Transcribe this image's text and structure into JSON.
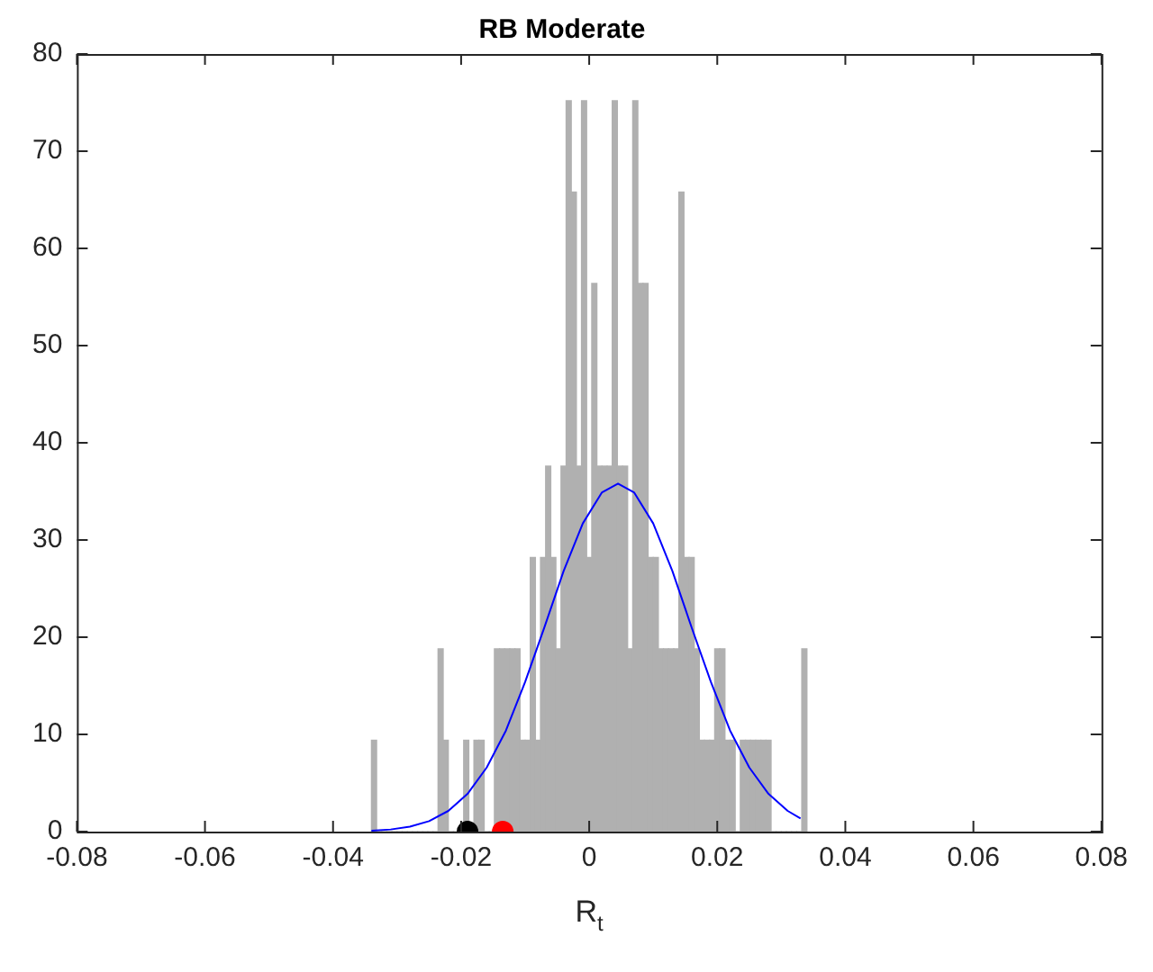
{
  "chart_data": {
    "type": "histogram",
    "title": "RB Moderate",
    "xlabel": "R$_{t}$",
    "color": "#b0b0b0",
    "bins": [
      -0.034,
      -0.0332,
      -0.0324,
      -0.0316,
      -0.0308,
      -0.03,
      -0.0292,
      -0.0284,
      -0.0276,
      -0.0268,
      -0.026,
      -0.0252,
      -0.0244,
      -0.0236,
      -0.0228,
      -0.022,
      -0.0212,
      -0.0204,
      -0.0196,
      -0.0188,
      -0.018,
      -0.0172,
      -0.0164,
      -0.0156,
      -0.0148,
      -0.014,
      -0.0132,
      -0.0124,
      -0.0116,
      -0.0108,
      -0.01,
      -0.0092,
      -0.0084,
      -0.0076,
      -0.0068,
      -0.006,
      -0.0052,
      -0.0044,
      -0.0036,
      -0.0028,
      -0.002,
      -0.0012,
      -0.0004,
      0.0004,
      0.0012,
      0.002,
      0.0028,
      0.0036,
      0.0044,
      0.0052,
      0.006,
      0.0068,
      0.0076,
      0.0084,
      0.0092,
      0.01,
      0.0108,
      0.0116,
      0.0124,
      0.0132,
      0.014,
      0.0148,
      0.0156,
      0.0164,
      0.0172,
      0.018,
      0.0188,
      0.0196,
      0.0204,
      0.0212,
      0.022,
      0.0228,
      0.0236,
      0.0244,
      0.0252,
      0.026,
      0.0268,
      0.0276,
      0.0284,
      0.0292,
      0.03,
      0.0308,
      0.0316,
      0.0324,
      0.0332,
      0.034
    ],
    "values": [
      9.4,
      0,
      0,
      0,
      0,
      0,
      0,
      0,
      0,
      0,
      0,
      0,
      0,
      18.8,
      9.4,
      0,
      0,
      0,
      9.4,
      0,
      9.4,
      9.4,
      0,
      0,
      18.8,
      18.8,
      18.8,
      18.8,
      18.8,
      9.4,
      9.4,
      28.2,
      9.4,
      28.2,
      37.6,
      28.2,
      18.8,
      37.6,
      75.2,
      65.8,
      37.6,
      75.2,
      28.2,
      56.4,
      37.6,
      37.6,
      37.6,
      75.2,
      37.6,
      37.6,
      18.8,
      75.2,
      56.4,
      56.4,
      28.2,
      28.2,
      18.8,
      18.8,
      18.8,
      18.8,
      65.8,
      28.2,
      28.2,
      18.8,
      9.4,
      9.4,
      9.4,
      18.8,
      18.8,
      9.4,
      9.4,
      0,
      9.4,
      9.4,
      9.4,
      9.4,
      9.4,
      9.4,
      0,
      0,
      0,
      0,
      0,
      0,
      18.8
    ],
    "series": [
      {
        "type": "line",
        "color": "#0000ff",
        "x": [
          -0.034,
          -0.031,
          -0.028,
          -0.025,
          -0.022,
          -0.019,
          -0.016,
          -0.013,
          -0.01,
          -0.007,
          -0.004,
          -0.001,
          0.002,
          0.0045,
          0.007,
          0.01,
          0.013,
          0.016,
          0.019,
          0.022,
          0.025,
          0.028,
          0.031,
          0.033
        ],
        "values": [
          0.09,
          0.22,
          0.51,
          1.08,
          2.13,
          3.88,
          6.6,
          10.4,
          15.4,
          21,
          26.8,
          31.7,
          34.9,
          35.8,
          34.9,
          31.7,
          26.8,
          21,
          15.4,
          10.4,
          6.6,
          3.88,
          2.13,
          1.36
        ]
      },
      {
        "type": "scatter",
        "color": "#000000",
        "marker": "circle",
        "x": [
          -0.019
        ],
        "values": [
          0
        ]
      },
      {
        "type": "scatter",
        "color": "#ff0000",
        "marker": "circle",
        "x": [
          -0.0135
        ],
        "values": [
          0
        ]
      }
    ],
    "xlim": [
      -0.08,
      0.08
    ],
    "ylim": [
      0,
      80
    ],
    "xticks": [
      -0.08,
      -0.06,
      -0.04,
      -0.02,
      0,
      0.02,
      0.04,
      0.06,
      0.08
    ],
    "yticks": [
      0,
      10,
      20,
      30,
      40,
      50,
      60,
      70,
      80
    ]
  }
}
